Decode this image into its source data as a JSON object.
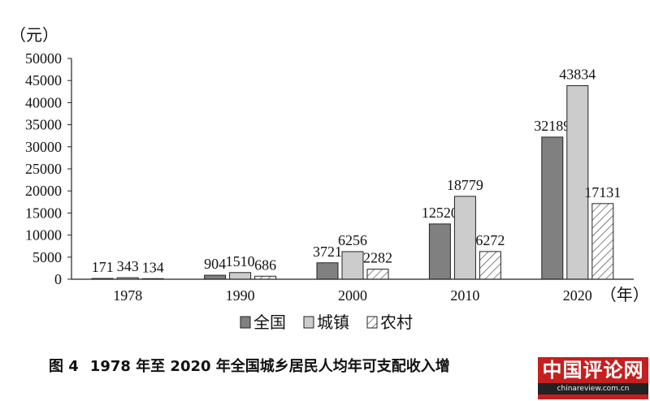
{
  "chart_data": {
    "type": "bar",
    "unit_label": "（元）",
    "xlabel": "（年）",
    "categories": [
      "1978",
      "1990",
      "2000",
      "2010",
      "2020"
    ],
    "series": [
      {
        "name": "全国",
        "values": [
          171,
          904,
          3721,
          12520,
          32189
        ],
        "color": "#808080"
      },
      {
        "name": "城镇",
        "values": [
          343,
          1510,
          6256,
          18779,
          43834
        ],
        "color": "#cccccc"
      },
      {
        "name": "农村",
        "values": [
          134,
          686,
          2282,
          6272,
          17131
        ],
        "color": "hatch"
      }
    ],
    "ylim": [
      0,
      50000
    ],
    "yticks": [
      0,
      5000,
      10000,
      15000,
      20000,
      25000,
      30000,
      35000,
      40000,
      45000,
      50000
    ],
    "grid": false,
    "legend": "bottom"
  },
  "caption": {
    "figure_no": "图 4",
    "text": "1978 年至 2020 年全国城乡居民人均年可支配收入增"
  },
  "watermark": {
    "main": "中国评论网",
    "sub": "chinareview.com.cn"
  }
}
